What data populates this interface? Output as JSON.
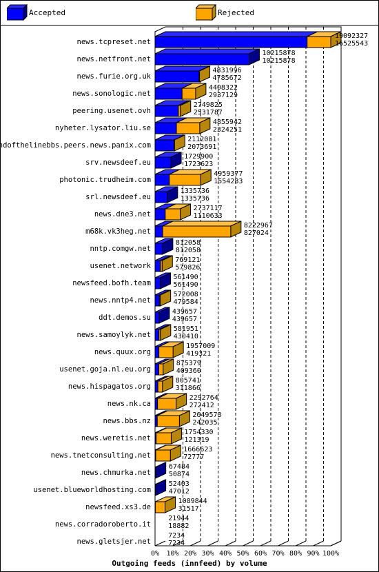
{
  "colors": {
    "accepted": "#0000ff",
    "accepted_top": "#2a2aff",
    "accepted_side": "#00008b",
    "rejected": "#ffa500",
    "rejected_top": "#ffc04a",
    "rejected_side": "#b8860b"
  },
  "legend": {
    "accepted_label": "Accepted",
    "rejected_label": "Rejected"
  },
  "chart_data": {
    "type": "bar",
    "orientation": "horizontal",
    "stacked": true,
    "title": "",
    "xlabel": "Outgoing feeds (innfeed) by volume",
    "ylabel": "",
    "x_ticks": [
      "0%",
      "10%",
      "20%",
      "30%",
      "40%",
      "50%",
      "60%",
      "70%",
      "80%",
      "90%",
      "100%"
    ],
    "xlim": [
      0,
      19092327
    ],
    "grid": "vertical dashed",
    "legend_position": "top",
    "series": [
      {
        "name": "Accepted"
      },
      {
        "name": "Rejected"
      }
    ],
    "rows": [
      {
        "host": "news.tcpreset.net",
        "accepted": 16525543,
        "total": 19092327
      },
      {
        "host": "news.netfront.net",
        "accepted": 10215878,
        "total": 10215878
      },
      {
        "host": "news.furie.org.uk",
        "accepted": 4785672,
        "total": 4831996
      },
      {
        "host": "news.sonologic.net",
        "accepted": 2937129,
        "total": 4408322
      },
      {
        "host": "peering.usenet.ovh",
        "accepted": 2531787,
        "total": 2749825
      },
      {
        "host": "nyheter.lysator.liu.se",
        "accepted": 2324251,
        "total": 4855942
      },
      {
        "host": "endofthelinebbs.peers.news.panix.com",
        "accepted": 2073691,
        "total": 2112081
      },
      {
        "host": "srv.newsdeef.eu",
        "accepted": 1723623,
        "total": 1729900
      },
      {
        "host": "photonic.trudheim.com",
        "accepted": 1554283,
        "total": 4959377
      },
      {
        "host": "srl.newsdeef.eu",
        "accepted": 1335736,
        "total": 1335736
      },
      {
        "host": "news.dne3.net",
        "accepted": 1110633,
        "total": 2737117
      },
      {
        "host": "m68k.vk3heg.net",
        "accepted": 827024,
        "total": 8222967
      },
      {
        "host": "nntp.comgw.net",
        "accepted": 812058,
        "total": 812058
      },
      {
        "host": "usenet.network",
        "accepted": 579826,
        "total": 769121
      },
      {
        "host": "newsfeed.bofh.team",
        "accepted": 561490,
        "total": 561490
      },
      {
        "host": "news.nntp4.net",
        "accepted": 479584,
        "total": 572008
      },
      {
        "host": "ddt.demos.su",
        "accepted": 439657,
        "total": 439657
      },
      {
        "host": "news.samoylyk.net",
        "accepted": 430410,
        "total": 581951
      },
      {
        "host": "news.quux.org",
        "accepted": 419321,
        "total": 1957009
      },
      {
        "host": "usenet.goja.nl.eu.org",
        "accepted": 409360,
        "total": 875379
      },
      {
        "host": "news.hispagatos.org",
        "accepted": 311866,
        "total": 805741
      },
      {
        "host": "news.nk.ca",
        "accepted": 272412,
        "total": 2292764
      },
      {
        "host": "news.bbs.nz",
        "accepted": 242035,
        "total": 2649573
      },
      {
        "host": "news.weretis.net",
        "accepted": 121319,
        "total": 1754330
      },
      {
        "host": "news.tnetconsulting.net",
        "accepted": 72777,
        "total": 1666623
      },
      {
        "host": "news.chmurka.net",
        "accepted": 50874,
        "total": 67484
      },
      {
        "host": "usenet.blueworldhosting.com",
        "accepted": 47012,
        "total": 52403
      },
      {
        "host": "newsfeed.xs3.de",
        "accepted": 31517,
        "total": 1089844
      },
      {
        "host": "news.corradoroberto.it",
        "accepted": 18882,
        "total": 21944
      },
      {
        "host": "news.gletsjer.net",
        "accepted": 7234,
        "total": 7234
      }
    ]
  }
}
